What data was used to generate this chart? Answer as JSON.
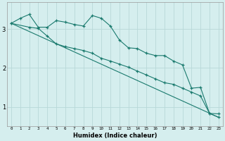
{
  "xlabel": "Humidex (Indice chaleur)",
  "bg_color": "#d5eeee",
  "grid_color": "#b8d8d8",
  "line_color": "#1a7a6e",
  "xlim": [
    -0.5,
    23.5
  ],
  "ylim": [
    0.5,
    3.7
  ],
  "xticks": [
    0,
    1,
    2,
    3,
    4,
    5,
    6,
    7,
    8,
    9,
    10,
    11,
    12,
    13,
    14,
    15,
    16,
    17,
    18,
    19,
    20,
    21,
    22,
    23
  ],
  "yticks": [
    1,
    2,
    3
  ],
  "series": [
    {
      "x": [
        0,
        1,
        2,
        3,
        4,
        5,
        6,
        7,
        8,
        9,
        10,
        11,
        12,
        13,
        14,
        15,
        16,
        17,
        18,
        19,
        20,
        21,
        22,
        23
      ],
      "y": [
        3.15,
        3.28,
        3.38,
        3.05,
        3.05,
        3.22,
        3.18,
        3.12,
        3.08,
        3.35,
        3.28,
        3.08,
        2.72,
        2.52,
        2.5,
        2.38,
        2.32,
        2.32,
        2.18,
        2.08,
        1.48,
        1.5,
        0.83,
        0.82
      ],
      "marker": true
    },
    {
      "x": [
        0,
        2,
        3,
        4,
        5,
        6,
        7,
        8,
        9,
        10,
        11,
        12,
        13,
        14,
        15,
        16,
        17,
        18,
        19,
        20,
        21,
        22,
        23
      ],
      "y": [
        3.15,
        3.05,
        3.02,
        2.82,
        2.62,
        2.55,
        2.5,
        2.45,
        2.38,
        2.25,
        2.18,
        2.1,
        2.02,
        1.92,
        1.82,
        1.72,
        1.62,
        1.58,
        1.48,
        1.38,
        1.28,
        0.83,
        0.73
      ],
      "marker": true
    },
    {
      "x": [
        0,
        23
      ],
      "y": [
        3.15,
        0.73
      ],
      "marker": false
    }
  ]
}
